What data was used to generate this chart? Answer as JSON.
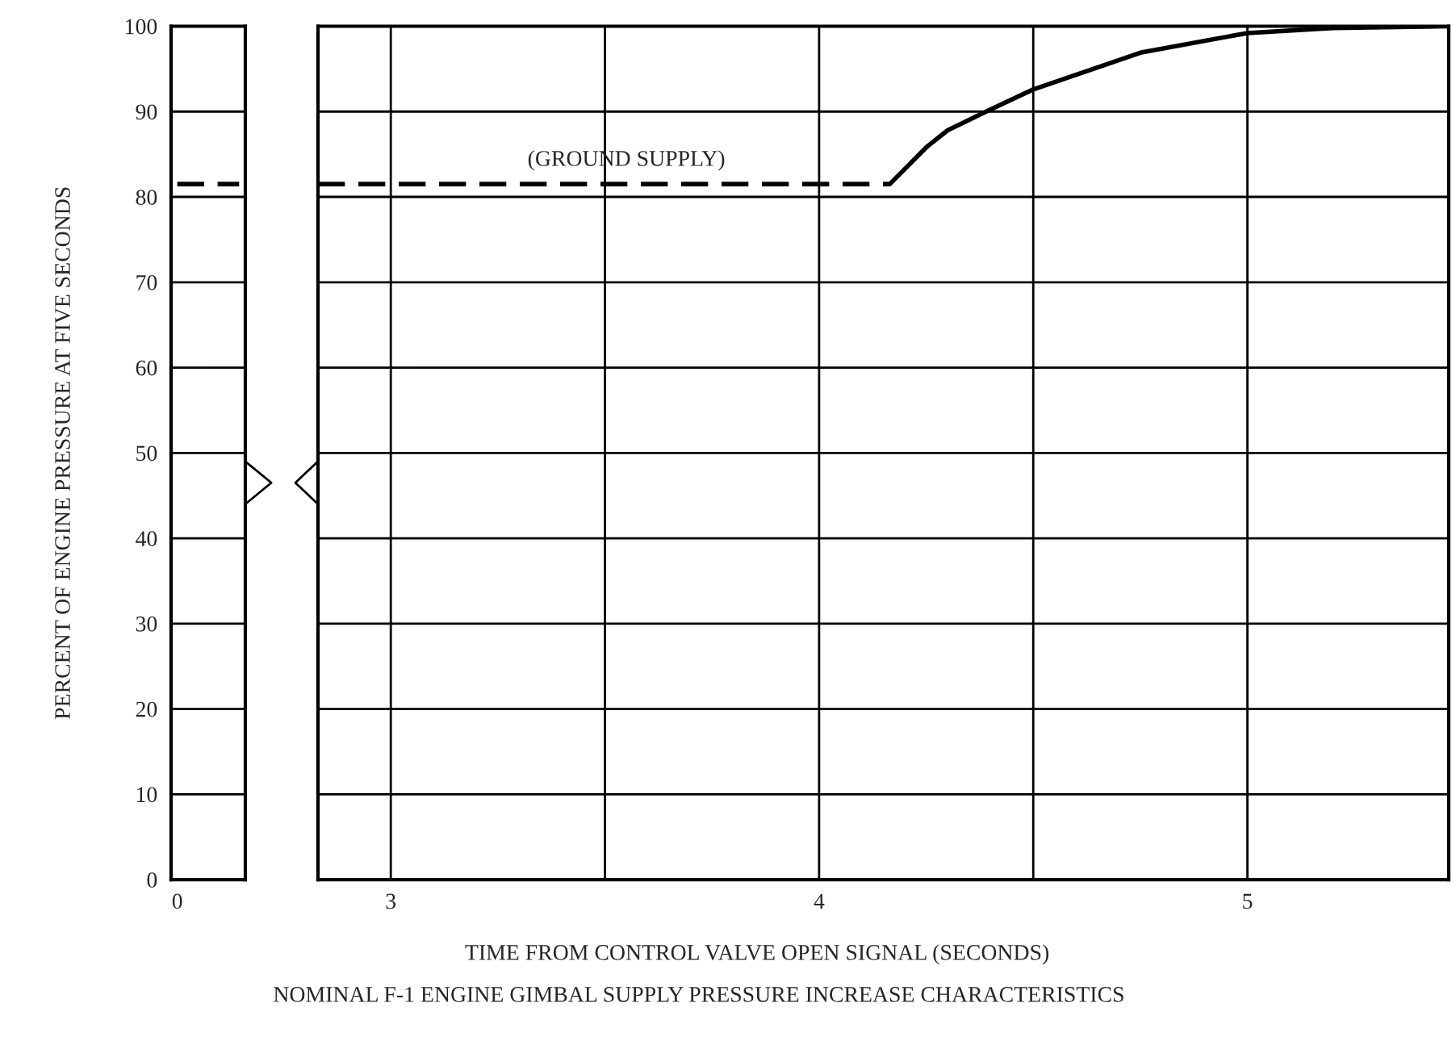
{
  "chart_data": [
    {
      "type": "line",
      "ylabel": "PERCENT OF ENGINE PRESSURE AT FIVE SECONDS",
      "categories": [
        "0",
        null,
        null,
        null,
        null,
        null
      ],
      "ylim": [
        0,
        100
      ],
      "yticks": [
        0,
        10,
        20,
        30,
        40,
        50,
        60,
        70,
        80,
        90,
        100
      ],
      "grid": "y",
      "series": [
        {
          "values": [
            81.5,
            81.5,
            81.5,
            81.5,
            81.5,
            81.5
          ],
          "color": "#000000",
          "line_style": "dashed"
        }
      ]
    },
    {
      "type": "line",
      "title": "NOMINAL F-1 ENGINE GIMBAL SUPPLY PRESSURE INCREASE CHARACTERISTICS",
      "xlabel": "TIME FROM CONTROL VALVE OPEN SIGNAL (SECONDS)",
      "xlim": [
        2.83,
        5.47
      ],
      "xticks": [
        3,
        {
          "value": 3.5,
          "label": null
        },
        4,
        {
          "value": 4.5,
          "label": null
        },
        5
      ],
      "ylim": [
        0,
        100
      ],
      "yticks": [
        0,
        10,
        20,
        30,
        40,
        50,
        60,
        70,
        80,
        90,
        100
      ],
      "grid": true,
      "tick_labels": "x",
      "annotations": [
        {
          "text": "(GROUND SUPPLY)",
          "x": 3.55,
          "y": 81.5
        }
      ],
      "series": [
        {
          "x": [
            2.83,
            4.165
          ],
          "values": [
            81.5,
            81.5
          ],
          "color": "#000000",
          "line_style": "dashed"
        },
        {
          "x": [
            4.165,
            4.25,
            4.3,
            4.39,
            4.5,
            4.75,
            5.0,
            5.2,
            5.47
          ],
          "values": [
            81.5,
            85.8,
            87.8,
            90,
            92.6,
            96.9,
            99.2,
            99.8,
            100
          ],
          "color": "#000000",
          "line_style": "solid"
        }
      ]
    }
  ]
}
